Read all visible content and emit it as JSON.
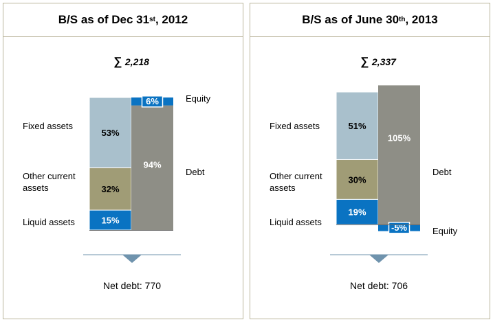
{
  "colors": {
    "fixed_assets": "#a9c0cc",
    "other_current_assets": "#a09c76",
    "liquid_assets": "#0a73c2",
    "debt": "#8e8e86",
    "equity": "#0a73c2",
    "border": "#b9b49a",
    "arrow": "#6f93ad"
  },
  "chart_data": [
    {
      "type": "bar",
      "subtype": "stacked-balance-sheet",
      "title": {
        "prefix": "B/S as of Dec 31",
        "sup": "st",
        "suffix": ", 2012"
      },
      "total_label": "2,218",
      "total": 2218,
      "assets": [
        {
          "name": "Liquid assets",
          "value": 15,
          "label": "15%"
        },
        {
          "name": "Other current assets",
          "value": 32,
          "label": "32%"
        },
        {
          "name": "Fixed assets",
          "value": 53,
          "label": "53%"
        }
      ],
      "liabilities": [
        {
          "name": "Debt",
          "value": 94,
          "label": "94%"
        },
        {
          "name": "Equity",
          "value": 6,
          "label": "6%"
        }
      ],
      "left_labels": {
        "fixed": "Fixed assets",
        "other_line1": "Other current",
        "other_line2": "assets",
        "liquid": "Liquid assets"
      },
      "right_labels": {
        "equity": "Equity",
        "debt": "Debt"
      },
      "net_debt": "Net debt: 770"
    },
    {
      "type": "bar",
      "subtype": "stacked-balance-sheet",
      "title": {
        "prefix": "B/S as of June 30",
        "sup": "th",
        "suffix": ", 2013"
      },
      "total_label": "2,337",
      "total": 2337,
      "assets": [
        {
          "name": "Liquid assets",
          "value": 19,
          "label": "19%"
        },
        {
          "name": "Other current assets",
          "value": 30,
          "label": "30%"
        },
        {
          "name": "Fixed assets",
          "value": 51,
          "label": "51%"
        }
      ],
      "liabilities": [
        {
          "name": "Debt",
          "value": 105,
          "label": "105%"
        },
        {
          "name": "Equity",
          "value": -5,
          "label": "-5%"
        }
      ],
      "left_labels": {
        "fixed": "Fixed assets",
        "other_line1": "Other current",
        "other_line2": "assets",
        "liquid": "Liquid assets"
      },
      "right_labels": {
        "equity": "Equity",
        "debt": "Debt"
      },
      "net_debt": "Net debt: 706"
    }
  ]
}
